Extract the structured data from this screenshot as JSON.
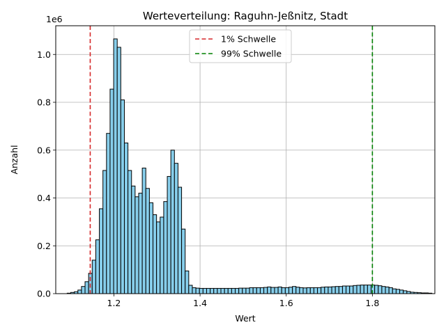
{
  "chart_data": {
    "type": "bar",
    "title": "Werteverteilung: Raguhn-Jeßnitz, Stadt",
    "xlabel": "Wert",
    "ylabel": "Anzahl",
    "y_offset_label": "1e6",
    "xlim": [
      1.065,
      1.945
    ],
    "ylim": [
      0,
      1120000
    ],
    "xticks": [
      1.2,
      1.4,
      1.6,
      1.8
    ],
    "xtick_labels": [
      "1.2",
      "1.4",
      "1.6",
      "1.8"
    ],
    "yticks": [
      0,
      200000,
      400000,
      600000,
      800000,
      1000000
    ],
    "ytick_labels": [
      "0.0",
      "0.2",
      "0.4",
      "0.6",
      "0.8",
      "1.0"
    ],
    "grid": true,
    "bar_color": "#87CEEB",
    "bar_edge_color": "#000000",
    "bins": {
      "start": 1.0915,
      "width": 0.0083,
      "values": [
        2000,
        5000,
        8000,
        15000,
        30000,
        50000,
        85000,
        140000,
        225000,
        355000,
        515000,
        670000,
        855000,
        1065000,
        1030000,
        810000,
        630000,
        515000,
        450000,
        405000,
        420000,
        525000,
        440000,
        380000,
        330000,
        300000,
        320000,
        385000,
        490000,
        600000,
        545000,
        445000,
        270000,
        95000,
        35000,
        25000,
        23000,
        22000,
        22000,
        22000,
        22000,
        22000,
        22000,
        22000,
        22000,
        22000,
        22000,
        22000,
        23000,
        23000,
        23000,
        25000,
        25000,
        25000,
        25000,
        26000,
        28000,
        26000,
        26000,
        28000,
        25000,
        25000,
        27000,
        30000,
        27000,
        25000,
        24000,
        25000,
        25000,
        25000,
        25000,
        27000,
        28000,
        28000,
        29000,
        30000,
        30000,
        32000,
        32000,
        32000,
        34000,
        35000,
        36000,
        36000,
        36000,
        36000,
        35000,
        33000,
        30000,
        28000,
        25000,
        20000,
        18000,
        15000,
        12000,
        9000,
        6000,
        5000,
        4000,
        3000,
        3000,
        2000
      ]
    },
    "threshold_lines": [
      {
        "name": "1% Schwelle",
        "x": 1.145,
        "color": "#d62728"
      },
      {
        "name": "99% Schwelle",
        "x": 1.8,
        "color": "#008000"
      }
    ],
    "legend_placement": "upper center"
  }
}
